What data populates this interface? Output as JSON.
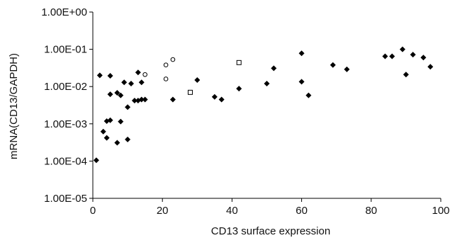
{
  "chart_data": {
    "type": "scatter",
    "title": "",
    "xlabel": "CD13 surface expression",
    "ylabel": "mRNA(CD13/GAPDH)",
    "xlim": [
      0,
      100
    ],
    "ylim": [
      1e-05,
      1
    ],
    "yscale": "log",
    "x_ticks": [
      0,
      20,
      40,
      60,
      80,
      100
    ],
    "x_tick_labels": [
      "0",
      "20",
      "40",
      "60",
      "80",
      "100"
    ],
    "y_ticks": [
      1e-05,
      0.0001,
      0.001,
      0.01,
      0.1,
      1
    ],
    "y_tick_labels": [
      "1.00E-05",
      "1.00E-04",
      "1.00E-03",
      "1.00E-02",
      "1.00E-01",
      "1.00E+00"
    ],
    "grid": false,
    "legend": "none",
    "series": [
      {
        "marker": "diamond-filled",
        "color": "#000000",
        "points": [
          [
            1,
            0.000105
          ],
          [
            2,
            0.02
          ],
          [
            3,
            0.00062
          ],
          [
            4,
            0.00042
          ],
          [
            4,
            0.00118
          ],
          [
            5,
            0.0195
          ],
          [
            5,
            0.0062
          ],
          [
            5,
            0.00125
          ],
          [
            7,
            0.00031
          ],
          [
            7,
            0.0068
          ],
          [
            8,
            0.00115
          ],
          [
            8,
            0.0058
          ],
          [
            9,
            0.013
          ],
          [
            10,
            0.0028
          ],
          [
            10,
            0.00038
          ],
          [
            11,
            0.012
          ],
          [
            12,
            0.0042
          ],
          [
            13,
            0.0042
          ],
          [
            13,
            0.024
          ],
          [
            14,
            0.013
          ],
          [
            14,
            0.0045
          ],
          [
            15,
            0.0045
          ],
          [
            23,
            0.0045
          ],
          [
            30,
            0.015
          ],
          [
            35,
            0.0053
          ],
          [
            37,
            0.0045
          ],
          [
            42,
            0.0088
          ],
          [
            50,
            0.012
          ],
          [
            52,
            0.031
          ],
          [
            60,
            0.078
          ],
          [
            60,
            0.0135
          ],
          [
            62,
            0.0058
          ],
          [
            69,
            0.038
          ],
          [
            73,
            0.029
          ],
          [
            84,
            0.065
          ],
          [
            86,
            0.065
          ],
          [
            89,
            0.1
          ],
          [
            90,
            0.021
          ],
          [
            92,
            0.072
          ],
          [
            95,
            0.06
          ],
          [
            97,
            0.034
          ]
        ]
      },
      {
        "marker": "circle-open",
        "color": "#000000",
        "points": [
          [
            15,
            0.021
          ],
          [
            21,
            0.038
          ],
          [
            21,
            0.016
          ],
          [
            23,
            0.053
          ]
        ]
      },
      {
        "marker": "square-open",
        "color": "#000000",
        "points": [
          [
            28,
            0.007
          ],
          [
            42,
            0.044
          ]
        ]
      }
    ]
  }
}
